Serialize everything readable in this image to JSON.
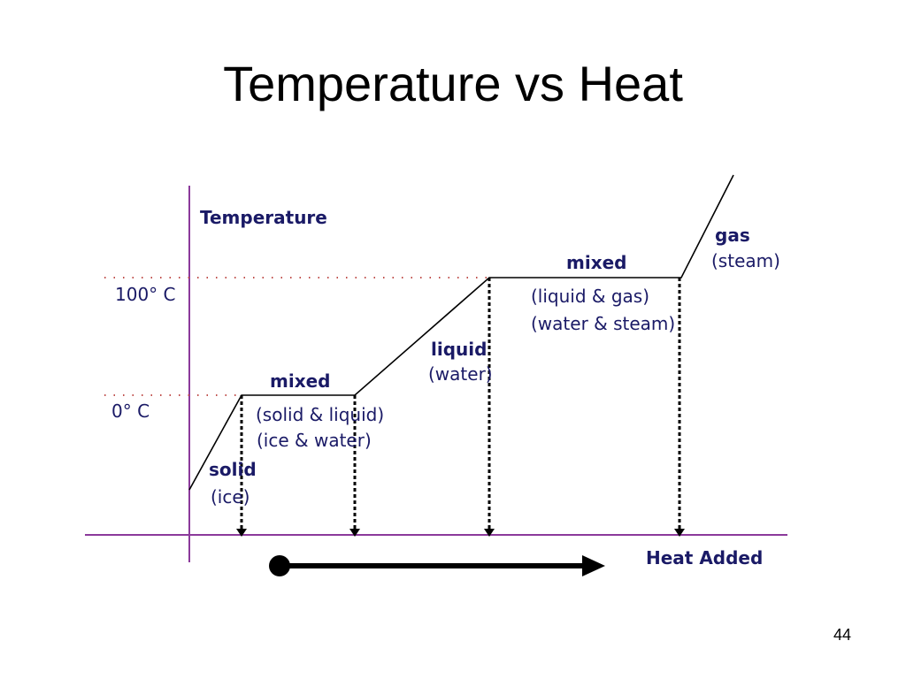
{
  "slide": {
    "title": "Temperature vs Heat",
    "number": "44"
  },
  "diagram": {
    "y_axis_label": "Temperature",
    "x_axis_label": "Heat Added",
    "levels": {
      "boiling": "100° C",
      "freezing": "0° C"
    },
    "phases": {
      "solid": {
        "name": "solid",
        "detail": "(ice)"
      },
      "melting": {
        "name": "mixed",
        "detail1": "(solid & liquid)",
        "detail2": "(ice & water)"
      },
      "liquid": {
        "name": "liquid",
        "detail": "(water)"
      },
      "boiling": {
        "name": "mixed",
        "detail1": "(liquid & gas)",
        "detail2": "(water & steam)"
      },
      "gas": {
        "name": "gas",
        "detail": "(steam)"
      }
    },
    "colors": {
      "axis": "#8b3a9b",
      "guide_dots": "#c0504d",
      "label_text": "#1a1a66",
      "curve": "#000000"
    }
  }
}
